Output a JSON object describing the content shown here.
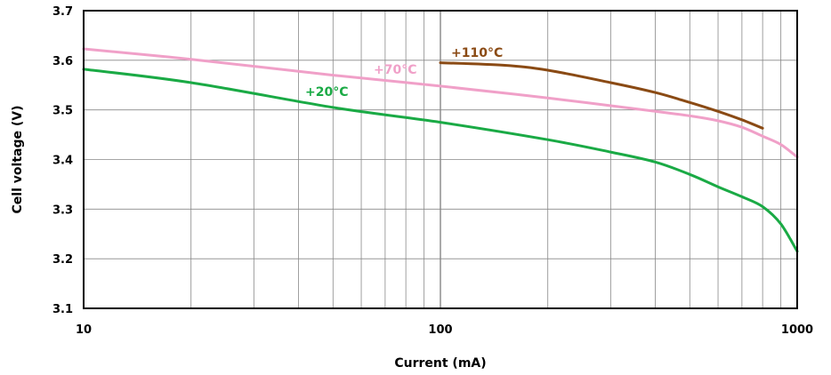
{
  "chart_data": {
    "type": "line",
    "xlabel": "Current (mA)",
    "ylabel": "Cell voltage (V)",
    "x_scale": "log",
    "xlim": [
      10,
      1000
    ],
    "ylim": [
      3.1,
      3.7
    ],
    "x_ticks": [
      "10",
      "100",
      "1000"
    ],
    "y_ticks": [
      "3.1",
      "3.2",
      "3.3",
      "3.4",
      "3.5",
      "3.6",
      "3.7"
    ],
    "grid": true,
    "legend": "none",
    "series": [
      {
        "name": "+20°C",
        "color": "#1aaa45",
        "x": [
          10,
          20,
          50,
          100,
          200,
          300,
          400,
          500,
          600,
          700,
          800,
          900,
          1000
        ],
        "y": [
          3.582,
          3.555,
          3.505,
          3.475,
          3.44,
          3.415,
          3.395,
          3.37,
          3.345,
          3.325,
          3.305,
          3.27,
          3.215
        ]
      },
      {
        "name": "+70°C",
        "color": "#f0a0c8",
        "x": [
          10,
          20,
          50,
          100,
          200,
          400,
          500,
          600,
          700,
          800,
          900,
          1000
        ],
        "y": [
          3.623,
          3.602,
          3.57,
          3.548,
          3.524,
          3.497,
          3.488,
          3.478,
          3.465,
          3.447,
          3.43,
          3.405
        ]
      },
      {
        "name": "+110°C",
        "color": "#8a4a14",
        "x": [
          100,
          150,
          200,
          300,
          400,
          500,
          600,
          700,
          800
        ],
        "y": [
          3.595,
          3.59,
          3.58,
          3.555,
          3.535,
          3.515,
          3.497,
          3.48,
          3.463
        ]
      }
    ]
  }
}
